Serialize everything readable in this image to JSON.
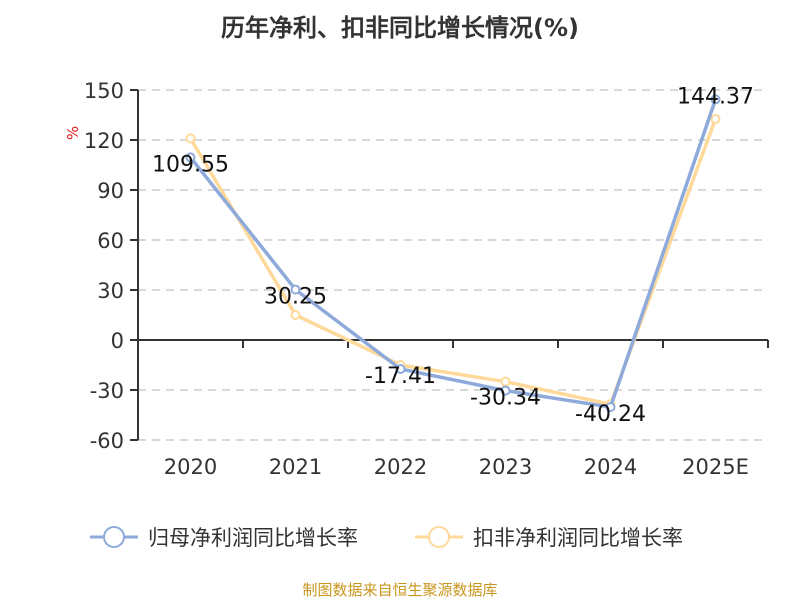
{
  "chart_data": {
    "type": "line",
    "title": "历年净利、扣非同比增长情况(%)",
    "ylabel": "%",
    "categories": [
      "2020",
      "2021",
      "2022",
      "2023",
      "2024",
      "2025E"
    ],
    "ylim": [
      -60,
      150
    ],
    "yticks": [
      150,
      120,
      90,
      60,
      30,
      0,
      -30,
      -60
    ],
    "grid": true,
    "legend_position": "bottom",
    "series": [
      {
        "name": "归母净利润同比增长率",
        "color": "#8eaadb",
        "values": [
          109.55,
          30.25,
          -17.41,
          -30.34,
          -40.24,
          144.37
        ],
        "labels": [
          "109.55",
          "30.25",
          "-17.41",
          "-30.34",
          "-40.24",
          "144.37"
        ]
      },
      {
        "name": "扣非净利润同比增长率",
        "color": "#ffd99a",
        "values": [
          121,
          15,
          -15,
          -25,
          -38.5,
          132.6
        ]
      }
    ]
  },
  "source": "制图数据来自恒生聚源数据库"
}
